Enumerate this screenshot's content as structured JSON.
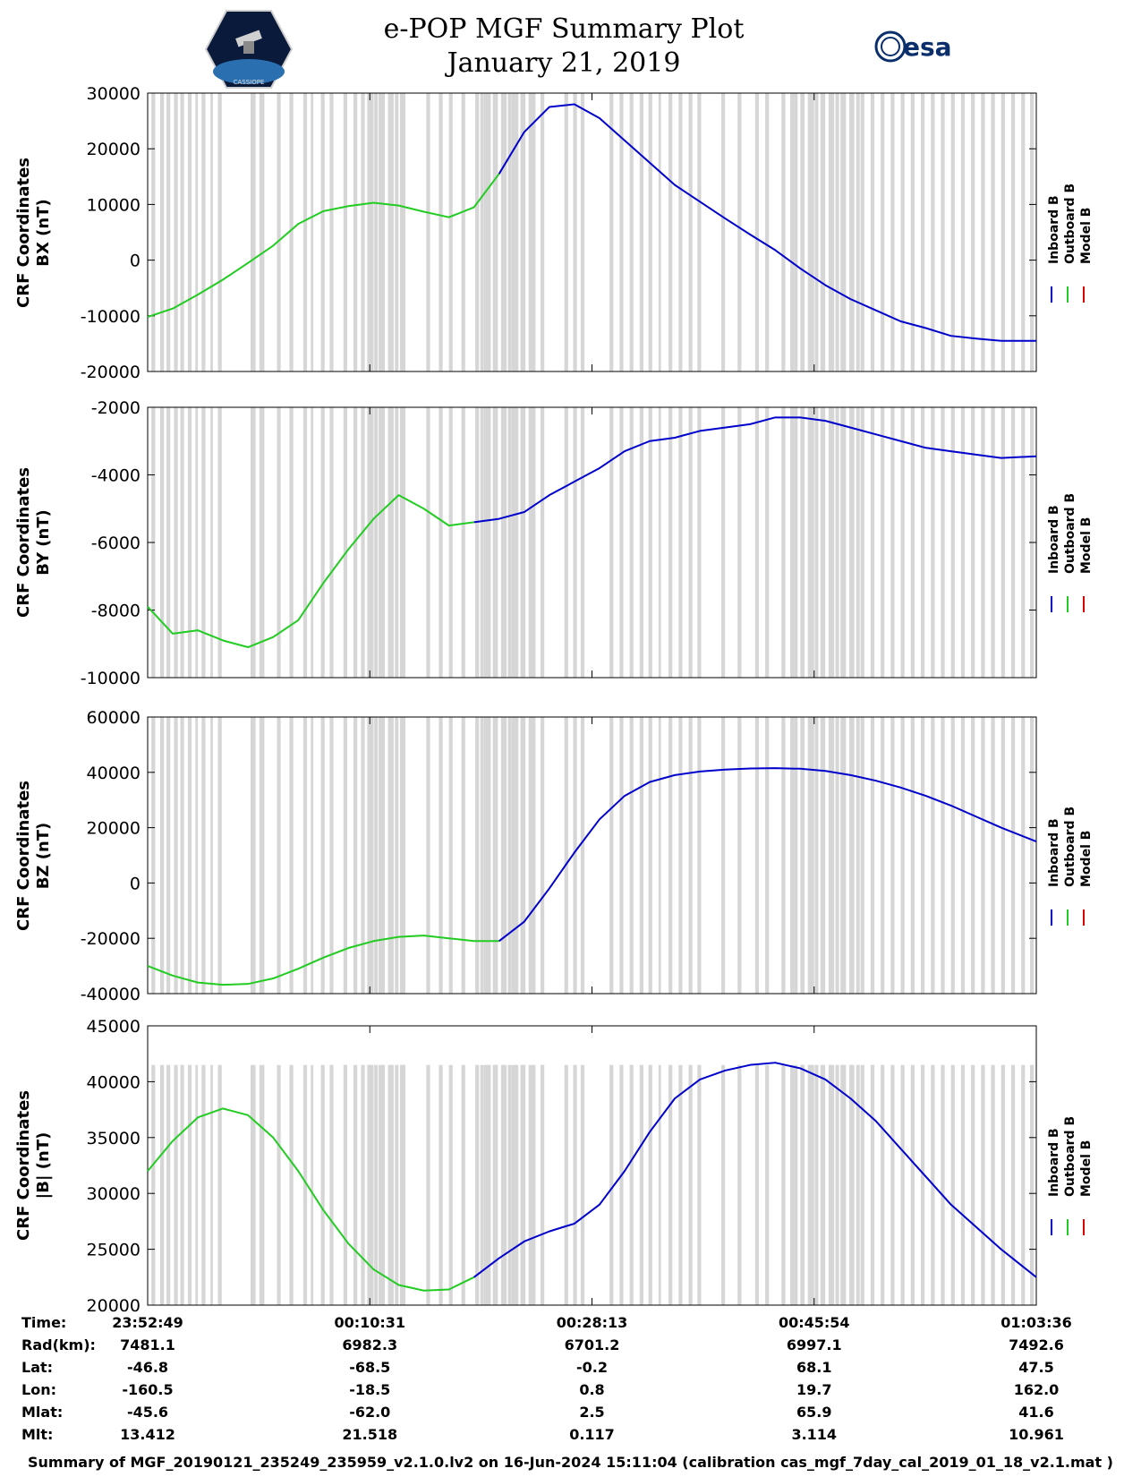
{
  "header": {
    "title_line1": "e-POP MGF Summary Plot",
    "title_line2": "January 21, 2019",
    "logo_left": "CASSIOPE",
    "logo_right": "esa"
  },
  "legend": {
    "items": [
      "Inboard B",
      "Outboard B",
      "Model B"
    ],
    "colors": [
      "#0000cc",
      "#22cc22",
      "#dd0000"
    ]
  },
  "chart_data": [
    {
      "type": "line",
      "ylabel_line1": "CRF Coordinates",
      "ylabel_line2": "BX (nT)",
      "ylim": [
        -20000,
        30000
      ],
      "yticks": [
        30000,
        20000,
        10000,
        0,
        -10000,
        -20000
      ],
      "ytick_labels": [
        "30000",
        "20000",
        "10000",
        "0",
        "-10000",
        "-20000"
      ],
      "x_minutes": [
        0,
        2,
        4,
        6,
        8,
        10,
        12,
        14,
        16,
        18,
        20,
        22,
        24,
        26,
        28,
        30,
        32,
        34,
        36,
        38,
        40,
        42,
        44,
        46,
        48,
        50,
        52,
        54,
        56,
        58,
        60,
        62,
        64,
        66,
        68,
        70.8
      ],
      "series": [
        {
          "name": "Outboard B",
          "segment": [
            0,
            14
          ],
          "values": [
            -10200,
            -8700,
            -6200,
            -3500,
            -500,
            2600,
            6500,
            8800,
            9700,
            10300,
            9800,
            8700,
            7700,
            9500,
            15500
          ]
        },
        {
          "name": "Inboard B",
          "segment": [
            14,
            35
          ],
          "values": [
            15500,
            23000,
            27500,
            28000,
            25500,
            21500,
            17500,
            13500,
            10500,
            7500,
            4600,
            1800,
            -1500,
            -4500,
            -7000,
            -9000,
            -11000,
            -12200,
            -13600,
            -14100,
            -14500,
            -14500
          ]
        }
      ]
    },
    {
      "type": "line",
      "ylabel_line1": "CRF Coordinates",
      "ylabel_line2": "BY (nT)",
      "ylim": [
        -10000,
        -2000
      ],
      "yticks": [
        -2000,
        -4000,
        -6000,
        -8000,
        -10000
      ],
      "ytick_labels": [
        "-2000",
        "-4000",
        "-6000",
        "-8000",
        "-10000"
      ],
      "x_minutes": [
        0,
        2,
        4,
        6,
        8,
        10,
        12,
        14,
        16,
        18,
        20,
        22,
        24,
        26,
        28,
        30,
        32,
        34,
        36,
        38,
        40,
        42,
        44,
        46,
        48,
        50,
        52,
        54,
        56,
        58,
        60,
        62,
        64,
        66,
        68,
        70.8
      ],
      "series": [
        {
          "name": "Outboard B",
          "segment": [
            0,
            13
          ],
          "values": [
            -7900,
            -8700,
            -8600,
            -8900,
            -9100,
            -8800,
            -8300,
            -7200,
            -6200,
            -5300,
            -4600,
            -5000,
            -5500,
            -5400
          ]
        },
        {
          "name": "Inboard B",
          "segment": [
            13,
            35
          ],
          "values": [
            -5400,
            -5300,
            -5100,
            -4600,
            -4200,
            -3800,
            -3300,
            -3000,
            -2900,
            -2700,
            -2600,
            -2500,
            -2300,
            -2300,
            -2400,
            -2600,
            -2800,
            -3000,
            -3200,
            -3300,
            -3400,
            -3500,
            -3450
          ]
        }
      ]
    },
    {
      "type": "line",
      "ylabel_line1": "CRF Coordinates",
      "ylabel_line2": "BZ (nT)",
      "ylim": [
        -40000,
        60000
      ],
      "yticks": [
        60000,
        40000,
        20000,
        0,
        -20000,
        -40000
      ],
      "ytick_labels": [
        "60000",
        "40000",
        "20000",
        "0",
        "-20000",
        "-40000"
      ],
      "x_minutes": [
        0,
        2,
        4,
        6,
        8,
        10,
        12,
        14,
        16,
        18,
        20,
        22,
        24,
        26,
        28,
        30,
        32,
        34,
        36,
        38,
        40,
        42,
        44,
        46,
        48,
        50,
        52,
        54,
        56,
        58,
        60,
        62,
        64,
        66,
        68,
        70.8
      ],
      "series": [
        {
          "name": "Outboard B",
          "segment": [
            0,
            14
          ],
          "values": [
            -30000,
            -33500,
            -36000,
            -36800,
            -36500,
            -34500,
            -31000,
            -27000,
            -23500,
            -21000,
            -19500,
            -19000,
            -20000,
            -21000,
            -21000
          ]
        },
        {
          "name": "Inboard B",
          "segment": [
            14,
            35
          ],
          "values": [
            -21000,
            -14000,
            -2000,
            11000,
            23000,
            31500,
            36500,
            39000,
            40300,
            41000,
            41400,
            41500,
            41300,
            40500,
            39000,
            37000,
            34500,
            31500,
            28000,
            24000,
            20000,
            15000
          ]
        }
      ]
    },
    {
      "type": "line",
      "ylabel_line1": "CRF Coordinates",
      "ylabel_line2": "|B| (nT)",
      "ylim": [
        20000,
        45000
      ],
      "yticks": [
        45000,
        40000,
        35000,
        30000,
        25000,
        20000
      ],
      "ytick_labels": [
        "45000",
        "40000",
        "35000",
        "30000",
        "25000",
        "20000"
      ],
      "x_minutes": [
        0,
        2,
        4,
        6,
        8,
        10,
        12,
        14,
        16,
        18,
        20,
        22,
        24,
        26,
        28,
        30,
        32,
        34,
        36,
        38,
        40,
        42,
        44,
        46,
        48,
        50,
        52,
        54,
        56,
        58,
        60,
        62,
        64,
        66,
        68,
        70.8
      ],
      "series": [
        {
          "name": "Outboard B",
          "segment": [
            0,
            13
          ],
          "values": [
            32000,
            34700,
            36800,
            37600,
            37000,
            35000,
            32000,
            28500,
            25500,
            23200,
            21800,
            21300,
            21400,
            22500
          ]
        },
        {
          "name": "Inboard B",
          "segment": [
            13,
            35
          ],
          "values": [
            22500,
            24200,
            25700,
            26600,
            27300,
            29000,
            32000,
            35500,
            38500,
            40200,
            41000,
            41500,
            41700,
            41200,
            40200,
            38500,
            36500,
            34000,
            31500,
            29000,
            27000,
            25000,
            22500
          ]
        }
      ]
    }
  ],
  "data_gaps_minutes": [
    [
      0.3,
      0.6
    ],
    [
      1.0,
      1.3
    ],
    [
      1.5,
      1.8
    ],
    [
      2.1,
      2.4
    ],
    [
      2.6,
      2.9
    ],
    [
      3.2,
      3.5
    ],
    [
      3.8,
      4.0
    ],
    [
      4.3,
      4.6
    ],
    [
      5.0,
      5.2
    ],
    [
      5.6,
      5.9
    ],
    [
      8.2,
      8.6
    ],
    [
      8.9,
      9.3
    ],
    [
      10.3,
      10.6
    ],
    [
      11.3,
      11.6
    ],
    [
      12.4,
      12.7
    ],
    [
      13.0,
      13.2
    ],
    [
      13.8,
      14.1
    ],
    [
      14.5,
      14.8
    ],
    [
      15.6,
      15.9
    ],
    [
      16.4,
      16.7
    ],
    [
      17.0,
      17.3
    ],
    [
      17.5,
      18.0
    ],
    [
      18.4,
      18.9
    ],
    [
      19.3,
      19.6
    ],
    [
      20.1,
      20.5
    ],
    [
      22.2,
      22.5
    ],
    [
      23.2,
      23.5
    ],
    [
      24.0,
      24.3
    ],
    [
      25.0,
      25.3
    ],
    [
      26.1,
      26.4
    ],
    [
      26.8,
      27.1
    ],
    [
      27.5,
      27.9
    ],
    [
      28.2,
      28.6
    ],
    [
      29.0,
      29.4
    ],
    [
      29.7,
      30.1
    ],
    [
      30.6,
      30.9
    ],
    [
      31.3,
      31.6
    ],
    [
      33.2,
      33.5
    ],
    [
      33.9,
      34.2
    ],
    [
      34.5,
      34.8
    ],
    [
      36.8,
      37.1
    ],
    [
      37.6,
      37.9
    ],
    [
      38.4,
      38.7
    ],
    [
      39.2,
      39.5
    ],
    [
      39.9,
      40.2
    ],
    [
      40.7,
      40.9
    ],
    [
      41.5,
      41.8
    ],
    [
      42.3,
      42.6
    ],
    [
      43.1,
      43.4
    ],
    [
      43.8,
      44.1
    ],
    [
      45.7,
      46.0
    ],
    [
      47.0,
      47.3
    ],
    [
      48.4,
      48.7
    ],
    [
      49.2,
      49.5
    ],
    [
      50.5,
      50.8
    ],
    [
      51.2,
      51.5
    ],
    [
      52.0,
      52.3
    ],
    [
      52.8,
      53.1
    ],
    [
      53.6,
      53.9
    ],
    [
      54.4,
      54.7
    ],
    [
      55.2,
      55.5
    ],
    [
      56.0,
      56.3
    ],
    [
      56.8,
      57.1
    ],
    [
      57.6,
      57.9
    ],
    [
      58.4,
      58.7
    ],
    [
      59.2,
      59.5
    ],
    [
      60.0,
      60.3
    ],
    [
      60.8,
      61.1
    ],
    [
      61.6,
      61.9
    ],
    [
      62.4,
      62.7
    ],
    [
      63.2,
      63.5
    ],
    [
      64.0,
      64.3
    ],
    [
      64.8,
      65.1
    ],
    [
      65.6,
      65.9
    ],
    [
      66.4,
      66.7
    ],
    [
      67.2,
      67.5
    ],
    [
      68.0,
      68.3
    ],
    [
      68.8,
      69.1
    ],
    [
      69.6,
      69.9
    ],
    [
      70.3,
      70.6
    ]
  ],
  "data_gap_dense_ranges_minutes": [
    [
      17.5,
      20.5
    ],
    [
      26.5,
      30.5
    ],
    [
      51.5,
      56.5
    ]
  ],
  "x_axis": {
    "start_minutes": 0,
    "end_minutes": 70.8,
    "tick_minutes": [
      0,
      17.7,
      35.4,
      53.1,
      70.8
    ]
  },
  "ephemeris": {
    "rows": [
      {
        "label": "Time:",
        "values": [
          "23:52:49",
          "00:10:31",
          "00:28:13",
          "00:45:54",
          "01:03:36"
        ]
      },
      {
        "label": "Rad(km):",
        "values": [
          "7481.1",
          "6982.3",
          "6701.2",
          "6997.1",
          "7492.6"
        ]
      },
      {
        "label": "Lat:",
        "values": [
          "-46.8",
          "-68.5",
          "-0.2",
          "68.1",
          "47.5"
        ]
      },
      {
        "label": "Lon:",
        "values": [
          "-160.5",
          "-18.5",
          "0.8",
          "19.7",
          "162.0"
        ]
      },
      {
        "label": "Mlat:",
        "values": [
          "-45.6",
          "-62.0",
          "2.5",
          "65.9",
          "41.6"
        ]
      },
      {
        "label": "Mlt:",
        "values": [
          "13.412",
          "21.518",
          "0.117",
          "3.114",
          "10.961"
        ]
      }
    ]
  },
  "caption": "Summary of MGF_20190121_235249_235959_v2.1.0.lv2 on 16-Jun-2024 15:11:04 (calibration cas_mgf_7day_cal_2019_01_18_v2.1.mat )"
}
